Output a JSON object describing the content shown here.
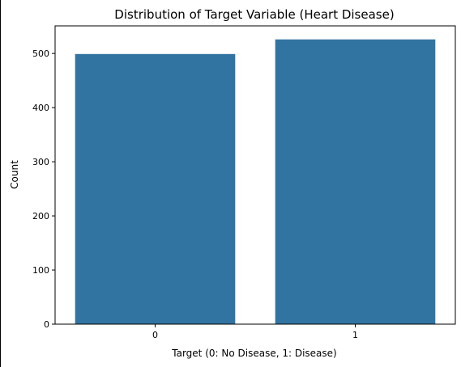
{
  "chart_data": {
    "type": "bar",
    "title": "Distribution of Target Variable (Heart Disease)",
    "xlabel": "Target (0: No Disease, 1: Disease)",
    "ylabel": "Count",
    "categories": [
      "0",
      "1"
    ],
    "values": [
      499,
      526
    ],
    "ylim": [
      0,
      551
    ],
    "yticks": [
      0,
      100,
      200,
      300,
      400,
      500
    ],
    "grid": false,
    "bar_color": "#3274a1"
  }
}
